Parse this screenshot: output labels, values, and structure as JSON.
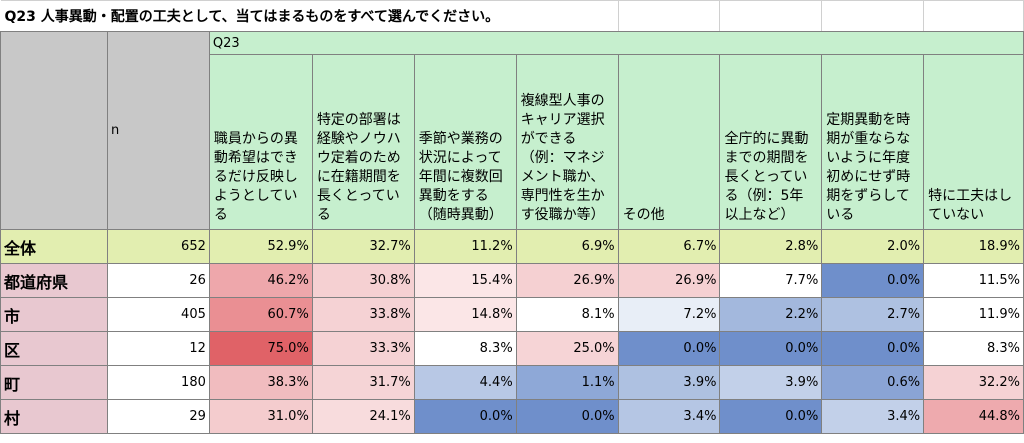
{
  "title": "Q23 人事異動・配置の工夫として、当てはまるものをすべて選んでください。",
  "question_label": "Q23",
  "n_label": "n",
  "columns": [
    "職員からの異動希望はできるだけ反映しようとしている",
    "特定の部署は経験やノウハウ定着のために在籍期間を長くとっている",
    "季節や業務の状況によって年間に複数回異動をする（随時異動）",
    "複線型人事のキャリア選択ができる（例：マネジメント職か、専門性を生かす役職か等）",
    "その他",
    "全庁的に異動までの期間を長くとっている（例：5年以上など）",
    "定期異動を時期が重ならないように年度初めにせず時期をずらしている",
    "特に工夫はしていない"
  ],
  "rows": [
    {
      "label": "全体",
      "n": "652",
      "values": [
        "52.9%",
        "32.7%",
        "11.2%",
        "6.9%",
        "6.7%",
        "2.8%",
        "2.0%",
        "18.9%"
      ],
      "colors": [
        "#e2eeb0",
        "#e2eeb0",
        "#e2eeb0",
        "#e2eeb0",
        "#e2eeb0",
        "#e2eeb0",
        "#e2eeb0",
        "#e2eeb0"
      ]
    },
    {
      "label": "都道府県",
      "n": "26",
      "values": [
        "46.2%",
        "30.8%",
        "15.4%",
        "26.9%",
        "26.9%",
        "7.7%",
        "0.0%",
        "11.5%"
      ],
      "colors": [
        "#eea7ab",
        "#f5d0d2",
        "#fbe6e7",
        "#f5d0d2",
        "#f5d0d2",
        "#ffffff",
        "#6f8fcb",
        "#ffffff"
      ]
    },
    {
      "label": "市",
      "n": "405",
      "values": [
        "60.7%",
        "33.8%",
        "14.8%",
        "8.1%",
        "7.2%",
        "2.2%",
        "2.7%",
        "11.9%"
      ],
      "colors": [
        "#ea8f93",
        "#f5d2d4",
        "#fbe6e7",
        "#ffffff",
        "#e8eef7",
        "#a3b8dd",
        "#aec1e1",
        "#ffffff"
      ]
    },
    {
      "label": "区",
      "n": "12",
      "values": [
        "75.0%",
        "33.3%",
        "8.3%",
        "25.0%",
        "0.0%",
        "0.0%",
        "0.0%",
        "8.3%"
      ],
      "colors": [
        "#e06267",
        "#f5d2d4",
        "#ffffff",
        "#f6d4d6",
        "#6f8fcb",
        "#6f8fcb",
        "#6f8fcb",
        "#ffffff"
      ]
    },
    {
      "label": "町",
      "n": "180",
      "values": [
        "38.3%",
        "31.7%",
        "4.4%",
        "1.1%",
        "3.9%",
        "3.9%",
        "0.6%",
        "32.2%"
      ],
      "colors": [
        "#f1bcbf",
        "#f5d4d6",
        "#b8c8e5",
        "#8ea8d7",
        "#aec1e1",
        "#c2d0e9",
        "#8aa4d5",
        "#f5d2d4"
      ]
    },
    {
      "label": "村",
      "n": "29",
      "values": [
        "31.0%",
        "24.1%",
        "0.0%",
        "0.0%",
        "3.4%",
        "0.0%",
        "3.4%",
        "44.8%"
      ],
      "colors": [
        "#f4ccce",
        "#f8dcdd",
        "#6f8fcb",
        "#6f8fcb",
        "#b5c6e4",
        "#6f8fcb",
        "#c2d0e9",
        "#eeaaae"
      ]
    }
  ]
}
